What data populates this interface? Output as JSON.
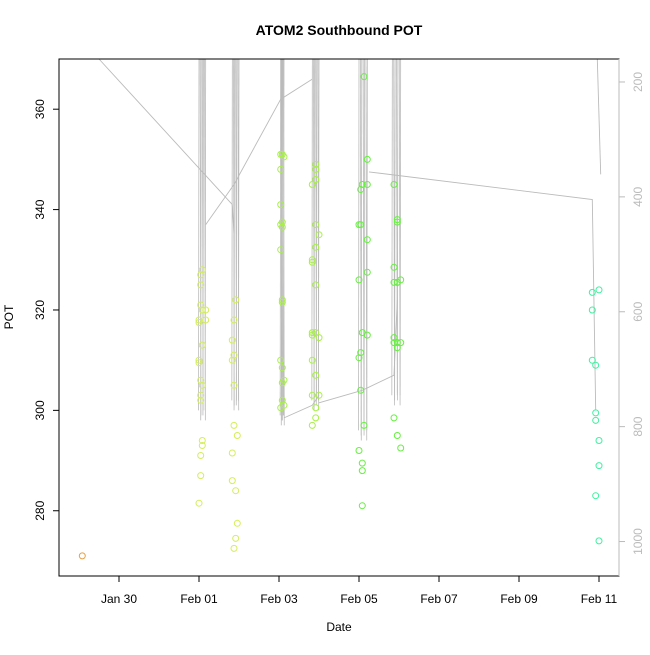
{
  "chart_data": {
    "type": "scatter",
    "title": "ATOM2 Southbound POT",
    "xlabel": "Date",
    "ylabel": "POT",
    "xlim": [
      "2021-01-28T12:00",
      "2021-02-11T12:00"
    ],
    "ylim": [
      267,
      370
    ],
    "y2lim": [
      1060,
      160
    ],
    "grid": false,
    "legend": "none",
    "x_tick_labels": [
      "Jan 30",
      "Feb 01",
      "Feb 03",
      "Feb 05",
      "Feb 07",
      "Feb 09",
      "Feb 11"
    ],
    "x_tick_dates": [
      "2021-01-30",
      "2021-02-01",
      "2021-02-03",
      "2021-02-05",
      "2021-02-07",
      "2021-02-09",
      "2021-02-11"
    ],
    "y_ticks": [
      280,
      300,
      320,
      340,
      360
    ],
    "y2_ticks": [
      200,
      400,
      600,
      800,
      1000
    ],
    "colors": {
      "track": "#bbbbbb",
      "axis": "#000000",
      "axis2": "#bbbbbb"
    },
    "series": [
      {
        "color": "#e8a040",
        "points": [
          {
            "x": "2021-01-29T02:00",
            "y": [
              271
            ]
          }
        ]
      },
      {
        "color": "#d4ee5a",
        "points": [
          {
            "x": "2021-02-01T00:00",
            "y": [
              281.5,
              317.5,
              309.5,
              310,
              318
            ]
          },
          {
            "x": "2021-02-01T01:00",
            "y": [
              287,
              291,
              306,
              303,
              302,
              321,
              325,
              327
            ]
          },
          {
            "x": "2021-02-01T02:00",
            "y": [
              294,
              293,
              328,
              320,
              313,
              305
            ]
          },
          {
            "x": "2021-02-01T04:00",
            "y": [
              318,
              320
            ]
          },
          {
            "x": "2021-02-01T20:00",
            "y": [
              286,
              291.5,
              310,
              314
            ]
          },
          {
            "x": "2021-02-01T21:00",
            "y": [
              272.5,
              297,
              305,
              311,
              318
            ]
          },
          {
            "x": "2021-02-01T22:00",
            "y": [
              274.5,
              284,
              322
            ]
          },
          {
            "x": "2021-02-01T23:00",
            "y": [
              295,
              277.5
            ]
          }
        ]
      },
      {
        "color": "#a8f048",
        "points": [
          {
            "x": "2021-02-03T01:00",
            "y": [
              300.5,
              310,
              332,
              337,
              341,
              348,
              351
            ]
          },
          {
            "x": "2021-02-03T02:00",
            "y": [
              302,
              305.5,
              308.5,
              321.5,
              322,
              337.5,
              336.5,
              351
            ]
          },
          {
            "x": "2021-02-03T03:00",
            "y": [
              301,
              306,
              350.5
            ]
          },
          {
            "x": "2021-02-03T20:00",
            "y": [
              297,
              303,
              310,
              315,
              315.5,
              330,
              329.5,
              345
            ]
          },
          {
            "x": "2021-02-03T22:00",
            "y": [
              298.5,
              300.5,
              307,
              315.5,
              325,
              332.5,
              337,
              346,
              348,
              349
            ]
          },
          {
            "x": "2021-02-04T00:00",
            "y": [
              303,
              314.5,
              335
            ]
          }
        ]
      },
      {
        "color": "#66f040",
        "points": [
          {
            "x": "2021-02-05T00:00",
            "y": [
              292,
              310.5,
              326,
              337
            ]
          },
          {
            "x": "2021-02-05T01:00",
            "y": [
              304,
              311.5,
              337,
              344
            ]
          },
          {
            "x": "2021-02-05T02:00",
            "y": [
              281,
              288,
              289.5,
              315.5,
              345
            ]
          },
          {
            "x": "2021-02-05T03:00",
            "y": [
              297,
              366.5
            ]
          },
          {
            "x": "2021-02-05T05:00",
            "y": [
              315,
              327.5,
              334,
              345,
              350
            ]
          },
          {
            "x": "2021-02-05T21:00",
            "y": [
              298.5,
              313.5,
              314.5,
              325.5,
              328.5,
              345
            ]
          },
          {
            "x": "2021-02-05T23:00",
            "y": [
              295,
              312.5,
              313.5,
              325.5,
              325.5,
              337.5,
              338
            ]
          },
          {
            "x": "2021-02-06T01:00",
            "y": [
              292.5,
              313.5,
              326
            ]
          }
        ]
      },
      {
        "color": "#40f0a0",
        "points": [
          {
            "x": "2021-02-10T20:00",
            "y": [
              310,
              320,
              323.5
            ]
          },
          {
            "x": "2021-02-10T22:00",
            "y": [
              283,
              298,
              299.5,
              309
            ]
          },
          {
            "x": "2021-02-11T00:00",
            "y": [
              274,
              289,
              294,
              324
            ]
          }
        ]
      }
    ]
  }
}
